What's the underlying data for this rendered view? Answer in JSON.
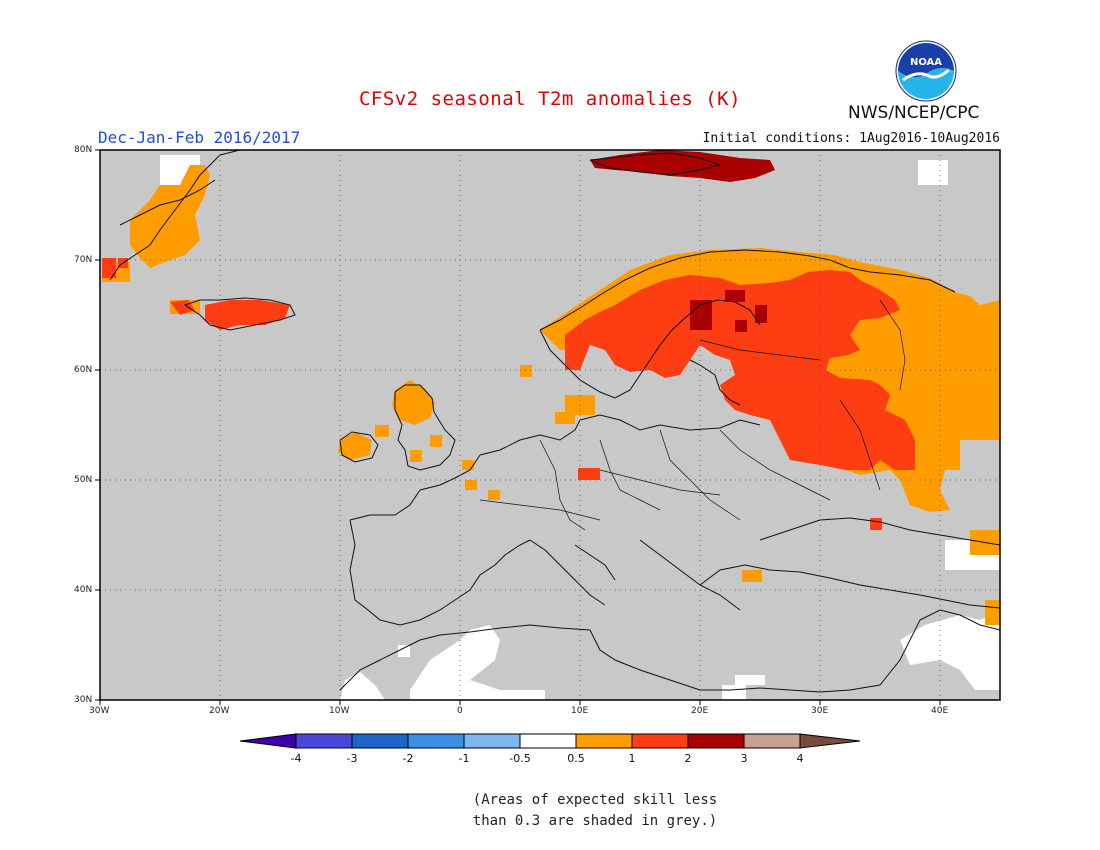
{
  "header": {
    "title": "CFSv2 seasonal T2m anomalies (K)",
    "season": "Dec-Jan-Feb 2016/2017",
    "initial_conditions": "Initial conditions: 1Aug2016-10Aug2016",
    "agency": "NWS/NCEP/CPC",
    "logo_text": "NOAA"
  },
  "map": {
    "lat_ticks": [
      "80N",
      "70N",
      "60N",
      "50N",
      "40N",
      "30N"
    ],
    "lon_ticks": [
      "30W",
      "20W",
      "10W",
      "0",
      "10E",
      "20E",
      "30E",
      "40E"
    ],
    "lon_range": [
      -30,
      45
    ],
    "lat_range": [
      30,
      80
    ],
    "grey_meaning": "low skill"
  },
  "colorbar": {
    "labels": [
      "-4",
      "-3",
      "-2",
      "-1",
      "-0.5",
      "0.5",
      "1",
      "2",
      "3",
      "4"
    ],
    "colors": [
      "#3e00a8",
      "#4a48d8",
      "#1d66c9",
      "#3a8fe8",
      "#7db6f0",
      "#ffffff",
      "#ff9d00",
      "#ff3d12",
      "#a80000",
      "#c9a193",
      "#7a4a3e"
    ]
  },
  "footnote": {
    "line1": "(Areas of expected skill less",
    "line2": "than 0.3 are shaded in grey.)"
  }
}
